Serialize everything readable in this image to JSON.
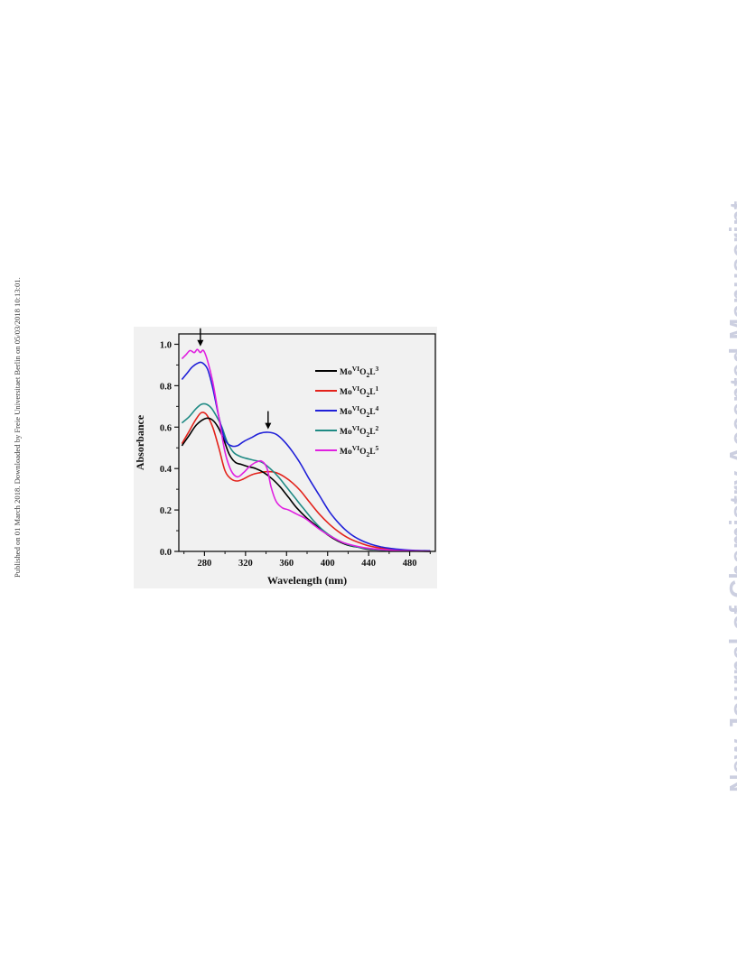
{
  "side_note": "Published on 01 March 2018. Downloaded by Freie Universitaet Berlin on 05/03/2018 10:13:01.",
  "watermark": "New Journal of Chemistry Accepted Manuscript",
  "chart_data": {
    "type": "line",
    "title": "",
    "xlabel": "Wavelength (nm)",
    "ylabel": "Absorbance",
    "xlim": [
      255,
      505
    ],
    "ylim": [
      0,
      1.05
    ],
    "x_ticks": [
      280,
      320,
      360,
      400,
      440,
      480
    ],
    "y_ticks": [
      0.0,
      0.2,
      0.4,
      0.6,
      0.8,
      1.0
    ],
    "x_tick_labels": [
      "280",
      "320",
      "360",
      "400",
      "440",
      "480"
    ],
    "y_tick_labels": [
      "0.0",
      "0.2",
      "0.4",
      "0.6",
      "0.8",
      "1.0"
    ],
    "grid": false,
    "legend_position": "upper-right",
    "annotations": [
      {
        "type": "arrow-down",
        "x": 276,
        "y_tip": 0.99
      },
      {
        "type": "arrow-down",
        "x": 342,
        "y_tip": 0.59
      }
    ],
    "series": [
      {
        "legend": {
          "base": "Mo",
          "sup": "VI",
          "mid": "O",
          "sub": "2",
          "tail": "L",
          "sup2": "3"
        },
        "color": "#000000",
        "x": [
          258,
          265,
          272,
          280,
          286,
          292,
          298,
          304,
          310,
          316,
          322,
          330,
          338,
          346,
          354,
          362,
          370,
          380,
          390,
          400,
          410,
          420,
          430,
          440,
          460,
          480,
          500
        ],
        "y": [
          0.51,
          0.56,
          0.61,
          0.64,
          0.64,
          0.61,
          0.55,
          0.47,
          0.43,
          0.42,
          0.41,
          0.4,
          0.38,
          0.35,
          0.31,
          0.26,
          0.21,
          0.16,
          0.12,
          0.08,
          0.05,
          0.03,
          0.02,
          0.01,
          0.005,
          0.002,
          0.0
        ]
      },
      {
        "legend": {
          "base": "Mo",
          "sup": "VI",
          "mid": "O",
          "sub": "2",
          "tail": "L",
          "sup2": "1"
        },
        "color": "#e3221b",
        "x": [
          258,
          265,
          272,
          277,
          282,
          288,
          294,
          300,
          306,
          312,
          318,
          326,
          334,
          342,
          350,
          358,
          366,
          374,
          382,
          392,
          402,
          412,
          422,
          432,
          442,
          460,
          480,
          500
        ],
        "y": [
          0.52,
          0.58,
          0.64,
          0.67,
          0.66,
          0.6,
          0.5,
          0.39,
          0.35,
          0.34,
          0.35,
          0.37,
          0.38,
          0.385,
          0.38,
          0.36,
          0.33,
          0.29,
          0.24,
          0.18,
          0.13,
          0.09,
          0.06,
          0.04,
          0.025,
          0.01,
          0.004,
          0.001
        ]
      },
      {
        "legend": {
          "base": "Mo",
          "sup": "VI",
          "mid": "O",
          "sub": "2",
          "tail": "L",
          "sup2": "4"
        },
        "color": "#2020d8",
        "x": [
          258,
          263,
          268,
          274,
          278,
          283,
          288,
          294,
          300,
          306,
          312,
          318,
          326,
          334,
          342,
          350,
          358,
          366,
          374,
          382,
          392,
          402,
          412,
          422,
          432,
          442,
          452,
          462,
          472,
          485,
          500
        ],
        "y": [
          0.83,
          0.86,
          0.89,
          0.91,
          0.91,
          0.88,
          0.79,
          0.65,
          0.54,
          0.51,
          0.51,
          0.53,
          0.55,
          0.57,
          0.575,
          0.565,
          0.53,
          0.48,
          0.42,
          0.35,
          0.27,
          0.19,
          0.13,
          0.085,
          0.055,
          0.035,
          0.022,
          0.014,
          0.009,
          0.005,
          0.003
        ]
      },
      {
        "legend": {
          "base": "Mo",
          "sup": "VI",
          "mid": "O",
          "sub": "2",
          "tail": "L",
          "sup2": "2"
        },
        "color": "#1f8a84",
        "x": [
          258,
          265,
          272,
          277,
          282,
          287,
          292,
          297,
          302,
          308,
          314,
          320,
          328,
          336,
          344,
          352,
          360,
          368,
          376,
          386,
          396,
          406,
          416,
          426,
          436,
          450,
          470,
          500
        ],
        "y": [
          0.62,
          0.65,
          0.69,
          0.71,
          0.71,
          0.69,
          0.65,
          0.6,
          0.53,
          0.48,
          0.46,
          0.45,
          0.44,
          0.43,
          0.4,
          0.36,
          0.31,
          0.26,
          0.21,
          0.15,
          0.1,
          0.065,
          0.04,
          0.025,
          0.015,
          0.008,
          0.003,
          0.001
        ]
      },
      {
        "legend": {
          "base": "Mo",
          "sup": "VI",
          "mid": "O",
          "sub": "2",
          "tail": "L",
          "sup2": "5"
        },
        "color": "#e020e0",
        "x": [
          258,
          262,
          266,
          270,
          273,
          276,
          279,
          283,
          288,
          294,
          300,
          306,
          312,
          318,
          324,
          330,
          336,
          341,
          345,
          350,
          356,
          362,
          370,
          378,
          386,
          394,
          404,
          414,
          424,
          436,
          450,
          470,
          500
        ],
        "y": [
          0.93,
          0.95,
          0.97,
          0.96,
          0.975,
          0.96,
          0.97,
          0.92,
          0.82,
          0.65,
          0.48,
          0.39,
          0.36,
          0.38,
          0.41,
          0.43,
          0.435,
          0.4,
          0.31,
          0.24,
          0.21,
          0.2,
          0.18,
          0.16,
          0.13,
          0.1,
          0.07,
          0.045,
          0.03,
          0.018,
          0.01,
          0.004,
          0.001
        ]
      }
    ]
  }
}
